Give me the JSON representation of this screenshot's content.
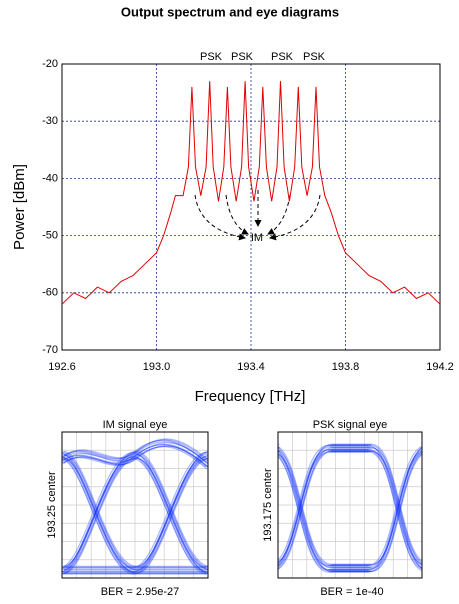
{
  "chart_data": [
    {
      "type": "line",
      "title": "Output spectrum and eye diagrams",
      "xlabel": "Frequency [THz]",
      "ylabel": "Power [dBm]",
      "color": "#e00000",
      "x": [
        192.6,
        192.65,
        192.7,
        192.75,
        192.8,
        192.85,
        192.9,
        192.95,
        193.0,
        193.03,
        193.06,
        193.08,
        193.1125,
        193.135,
        193.15,
        193.165,
        193.1875,
        193.21,
        193.225,
        193.24,
        193.2625,
        193.285,
        193.3,
        193.315,
        193.3375,
        193.36,
        193.375,
        193.39,
        193.4125,
        193.435,
        193.45,
        193.465,
        193.4875,
        193.51,
        193.525,
        193.54,
        193.5625,
        193.585,
        193.6,
        193.615,
        193.6375,
        193.66,
        193.675,
        193.69,
        193.7125,
        193.74,
        193.77,
        193.8,
        193.85,
        193.9,
        193.95,
        194.0,
        194.05,
        194.1,
        194.15,
        194.2
      ],
      "values": [
        -62,
        -60,
        -61,
        -59,
        -60,
        -58,
        -57,
        -55,
        -53,
        -50,
        -46,
        -43,
        -43,
        -38,
        -24,
        -38,
        -43,
        -38,
        -23,
        -38,
        -44,
        -38,
        -24,
        -38,
        -44,
        -38,
        -23,
        -38,
        -44,
        -38,
        -24,
        -38,
        -44,
        -38,
        -23,
        -38,
        -44,
        -38,
        -24,
        -38,
        -43,
        -38,
        -24,
        -38,
        -43,
        -46,
        -50,
        -53,
        -55,
        -57,
        -58,
        -60,
        -59,
        -61,
        -60,
        -62
      ],
      "xlim": [
        192.6,
        194.2
      ],
      "xticks": [
        192.6,
        {
          "value": 193,
          "label": "193.0"
        },
        193.4,
        193.8,
        194.2
      ],
      "ylim": [
        -70,
        -20
      ],
      "yticks": [
        -20,
        -30,
        -40,
        -50,
        -60,
        -70
      ],
      "grid": true,
      "annotations": [
        "PSK",
        "PSK",
        "PSK",
        "PSK",
        "IM"
      ]
    },
    {
      "type": "eye",
      "title": "IM signal eye",
      "ylabel": "193.25 center",
      "annotation": "BER = 2.95e-27"
    },
    {
      "type": "eye",
      "title": "PSK signal eye",
      "ylabel": "193.175 center",
      "annotation": "BER = 1e-40"
    }
  ]
}
